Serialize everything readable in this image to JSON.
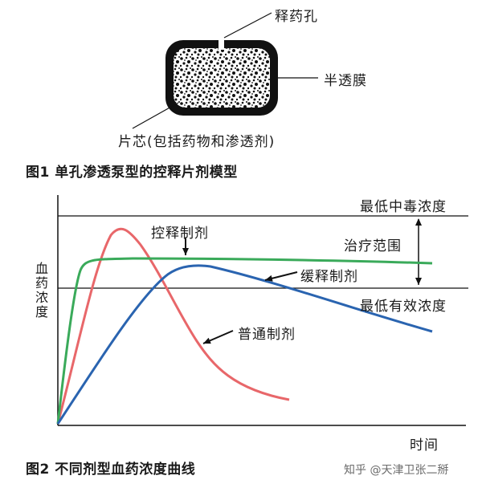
{
  "figure1": {
    "caption": "图1 单孔渗透泵型的控释片剂模型",
    "labels": {
      "orifice": "释药孔",
      "membrane": "半透膜",
      "core": "片芯(包括药物和渗透剂)"
    }
  },
  "figure2": {
    "caption": "图2 不同剂型血药浓度曲线",
    "ylabel": "血药浓度",
    "xlabel": "时间",
    "annotations": {
      "toxic": "最低中毒浓度",
      "effective": "最低有效浓度",
      "therapeutic": "治疗范围",
      "controlled": "控释制剂",
      "sustained": "缓释制剂",
      "ordinary": "普通制剂"
    },
    "colors": {
      "ordinary": "#e8676a",
      "controlled": "#3aaa5a",
      "sustained": "#2a64b0"
    }
  },
  "watermark": "知乎 @天津卫张二掰"
}
